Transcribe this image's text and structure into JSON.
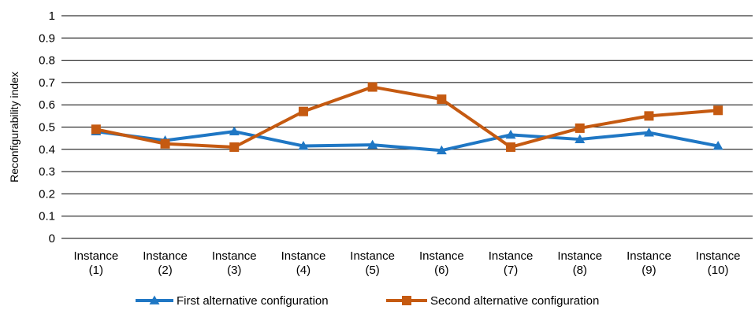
{
  "chart_data": {
    "type": "line",
    "title": "",
    "xlabel": "",
    "ylabel": "Reconfigurability index",
    "ylim": [
      0,
      1
    ],
    "yticks": [
      "0",
      "0.1",
      "0.2",
      "0.3",
      "0.4",
      "0.5",
      "0.6",
      "0.7",
      "0.8",
      "0.9",
      "1"
    ],
    "categories": [
      [
        "Instance",
        "(1)"
      ],
      [
        "Instance",
        "(2)"
      ],
      [
        "Instance",
        "(3)"
      ],
      [
        "Instance",
        "(4)"
      ],
      [
        "Instance",
        "(5)"
      ],
      [
        "Instance",
        "(6)"
      ],
      [
        "Instance",
        "(7)"
      ],
      [
        "Instance",
        "(8)"
      ],
      [
        "Instance",
        "(9)"
      ],
      [
        "Instance",
        "(10)"
      ]
    ],
    "grid": true,
    "legend": "bottom",
    "series": [
      {
        "name": "First alternative configuration",
        "marker": "triangle",
        "color": "#1f77c4",
        "values": [
          0.48,
          0.44,
          0.48,
          0.415,
          0.42,
          0.395,
          0.465,
          0.445,
          0.475,
          0.415
        ]
      },
      {
        "name": "Second alternative configuration",
        "marker": "square",
        "color": "#c55a11",
        "values": [
          0.49,
          0.425,
          0.41,
          0.57,
          0.68,
          0.625,
          0.41,
          0.495,
          0.55,
          0.575
        ]
      }
    ]
  }
}
